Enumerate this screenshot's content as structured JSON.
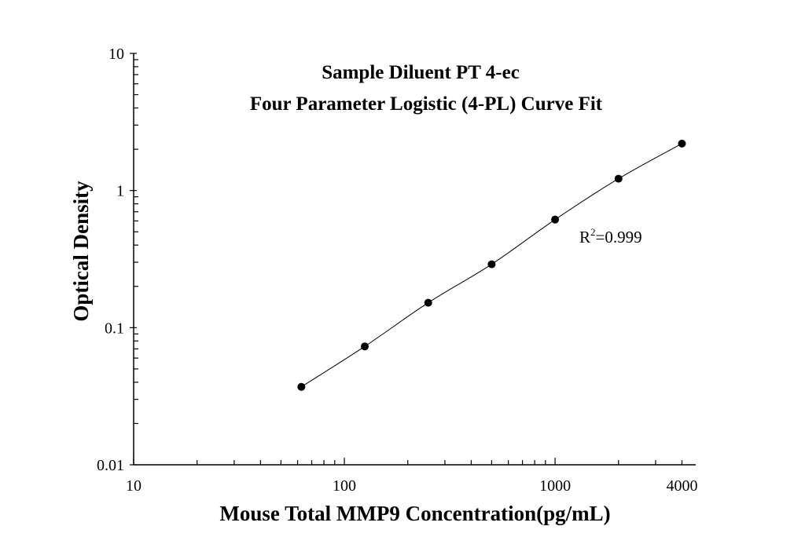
{
  "chart_data": {
    "type": "scatter",
    "title": [
      "Sample Diluent PT 4-ec",
      "Four Parameter Logistic (4-PL) Curve Fit"
    ],
    "xlabel": "Mouse Total MMP9 Concentration(pg/mL)",
    "ylabel": "Optical Density",
    "x_scale": "log",
    "y_scale": "log",
    "xlim": [
      10,
      4650
    ],
    "ylim": [
      0.01,
      10
    ],
    "x_ticks": [
      {
        "value": 10,
        "label": "10"
      },
      {
        "value": 100,
        "label": "100"
      },
      {
        "value": 1000,
        "label": "1000"
      },
      {
        "value": 4000,
        "label": "4000"
      }
    ],
    "y_ticks": [
      {
        "value": 0.01,
        "label": "0.01"
      },
      {
        "value": 0.1,
        "label": "0.1"
      },
      {
        "value": 1,
        "label": "1"
      },
      {
        "value": 10,
        "label": "10"
      }
    ],
    "grid": false,
    "series": [
      {
        "x": [
          62.5,
          125,
          250,
          500,
          1000,
          2000,
          4000
        ],
        "y": [
          0.037,
          0.073,
          0.152,
          0.29,
          0.614,
          1.22,
          2.2
        ],
        "marker": "filled-circle",
        "fit": "4-PL curve",
        "color": "#000000"
      }
    ],
    "annotation": {
      "r_label": "R",
      "superscript": "2",
      "value": "=0.999"
    }
  }
}
